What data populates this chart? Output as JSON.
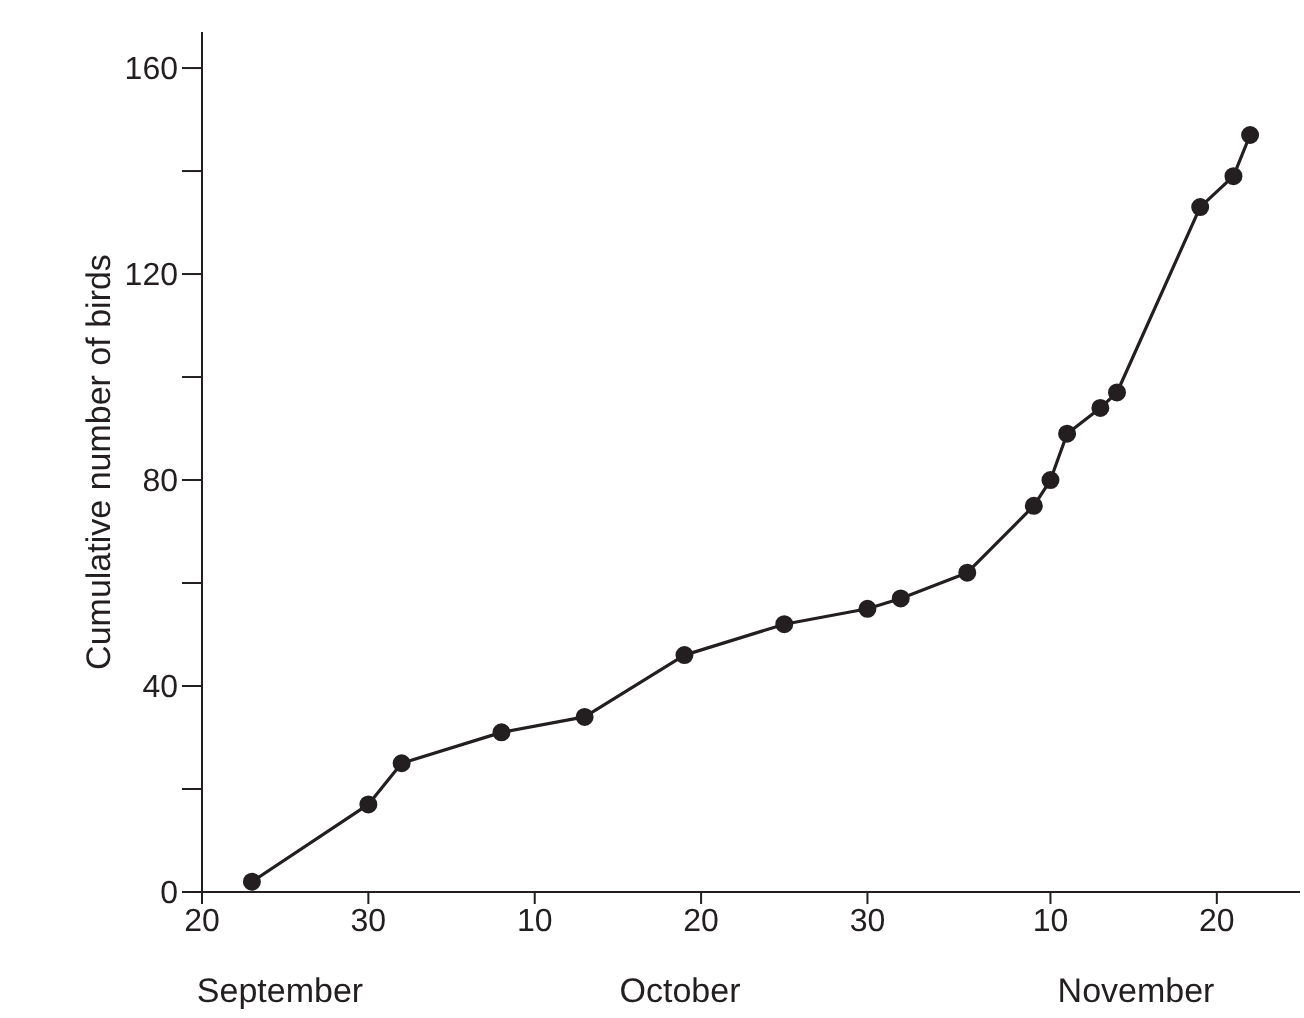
{
  "chart_data": {
    "type": "line",
    "ylabel": "Cumulative number of birds",
    "x": [
      "--09-23",
      "--09-30",
      "--10-02",
      "--10-08",
      "--10-13",
      "--10-19",
      "--10-25",
      "--10-30",
      "--11-01",
      "--11-05",
      "--11-09",
      "--11-10",
      "--11-11",
      "--11-13",
      "--11-14",
      "--11-19",
      "--11-21",
      "--11-22"
    ],
    "series": [
      {
        "color": "#231f20",
        "values": [
          2,
          17,
          25,
          31,
          34,
          46,
          52,
          55,
          57,
          62,
          75,
          80,
          89,
          94,
          97,
          133,
          139,
          147
        ]
      }
    ],
    "xlim": [
      "--09-20",
      "--11-25"
    ],
    "xticks": [
      {
        "value": "--09-20",
        "label": "20"
      },
      {
        "value": "--09-30",
        "label": "30"
      },
      {
        "value": "--10-10",
        "label": "10"
      },
      {
        "value": "--10-20",
        "label": "20"
      },
      {
        "value": "--10-30",
        "label": "30"
      },
      {
        "value": "--11-10",
        "label": "10"
      },
      {
        "value": "--11-20",
        "label": "20"
      }
    ],
    "ylim": [
      0,
      167
    ],
    "yticks": [
      0,
      {
        "value": 20,
        "label": null
      },
      40,
      {
        "value": 60,
        "label": null
      },
      80,
      {
        "value": 100,
        "label": null
      },
      120,
      {
        "value": 140,
        "label": null
      },
      160
    ],
    "annotations": [
      "September",
      "October",
      "November"
    ],
    "marker": "circle",
    "line_style": "solid"
  }
}
